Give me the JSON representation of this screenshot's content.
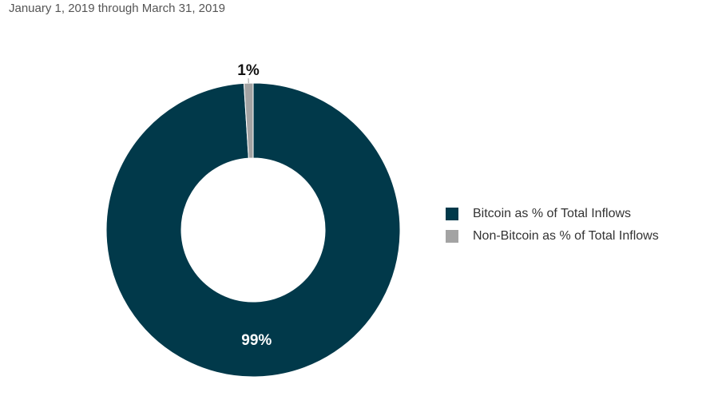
{
  "chart_data": {
    "type": "pie",
    "subtitle": "January 1, 2019 through March 31, 2019",
    "donut": true,
    "slices": [
      {
        "name": "Bitcoin as % of Total Inflows",
        "value": 99,
        "label": "99%",
        "color": "#01394a"
      },
      {
        "name": "Non-Bitcoin as % of Total Inflows",
        "value": 1,
        "label": "1%",
        "color": "#a3a3a3"
      }
    ],
    "legend_position": "right"
  }
}
